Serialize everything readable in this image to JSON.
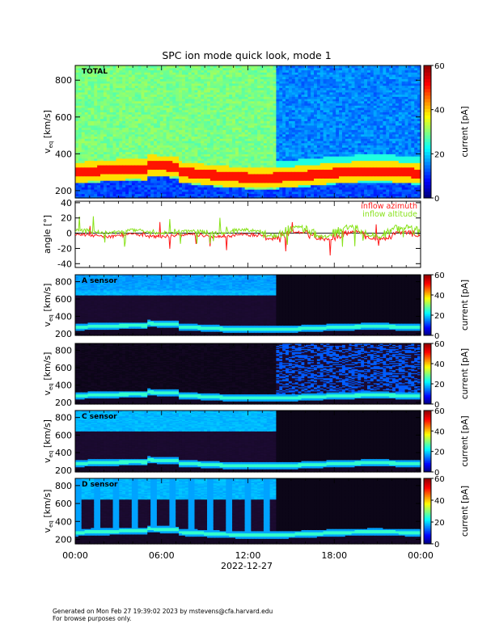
{
  "title": "SPC ion mode quick look, mode 1",
  "footer": {
    "line1": "Generated on Mon Feb 27 19:39:02 2023 by mstevens@cfa.harvard.edu",
    "line2": "For browse purposes only."
  },
  "colors": {
    "red": "#ff1a1a",
    "green": "#88e21a",
    "black": "#000000"
  },
  "chart_data": [
    {
      "type": "heatmap",
      "panel_label": "TOTAL",
      "ylabel": "v",
      "ylabel_sub": "eq",
      "ylabel_unit": "[km/s]",
      "ylim": [
        160,
        880
      ],
      "yticks": [
        200,
        400,
        600,
        800
      ],
      "colorbar": {
        "label": "current [pA]",
        "range": [
          0,
          60
        ],
        "ticks": [
          0,
          20,
          40,
          60
        ]
      },
      "peak_speed_kms": 300
    },
    {
      "type": "line",
      "ylabel": "angle [°]",
      "ylim": [
        -45,
        42
      ],
      "yticks": [
        -40,
        -20,
        0,
        20,
        40
      ],
      "series": [
        {
          "name": "inflow azimuth",
          "color": "#ff1a1a"
        },
        {
          "name": "inflow altitude",
          "color": "#88e21a"
        }
      ]
    },
    {
      "type": "heatmap",
      "panel_label": "A sensor",
      "ylim": [
        180,
        880
      ],
      "yticks": [
        200,
        400,
        600,
        800
      ],
      "colorbar": {
        "label": "current [pA]",
        "range": [
          0,
          60
        ],
        "ticks": [
          0,
          20,
          40,
          60
        ]
      }
    },
    {
      "type": "heatmap",
      "panel_label": "",
      "ylim": [
        180,
        880
      ],
      "yticks": [
        200,
        400,
        600,
        800
      ],
      "colorbar": {
        "label": "current [pA]",
        "range": [
          0,
          60
        ],
        "ticks": [
          0,
          20,
          40,
          60
        ]
      }
    },
    {
      "type": "heatmap",
      "panel_label": "C sensor",
      "ylim": [
        180,
        880
      ],
      "yticks": [
        200,
        400,
        600,
        800
      ],
      "colorbar": {
        "label": "current [pA]",
        "range": [
          0,
          60
        ],
        "ticks": [
          0,
          20,
          40,
          60
        ]
      }
    },
    {
      "type": "heatmap",
      "panel_label": "D sensor",
      "ylim": [
        150,
        880
      ],
      "yticks": [
        200,
        400,
        600,
        800
      ],
      "colorbar": {
        "label": "current [pA]",
        "range": [
          0,
          60
        ],
        "ticks": [
          0,
          20,
          40,
          60
        ]
      }
    }
  ],
  "x_axis": {
    "ticks": [
      "00:00",
      "06:00",
      "12:00",
      "18:00",
      "00:00"
    ],
    "tick_hours": [
      0,
      6,
      12,
      18,
      24
    ],
    "date": "2022-12-27"
  }
}
